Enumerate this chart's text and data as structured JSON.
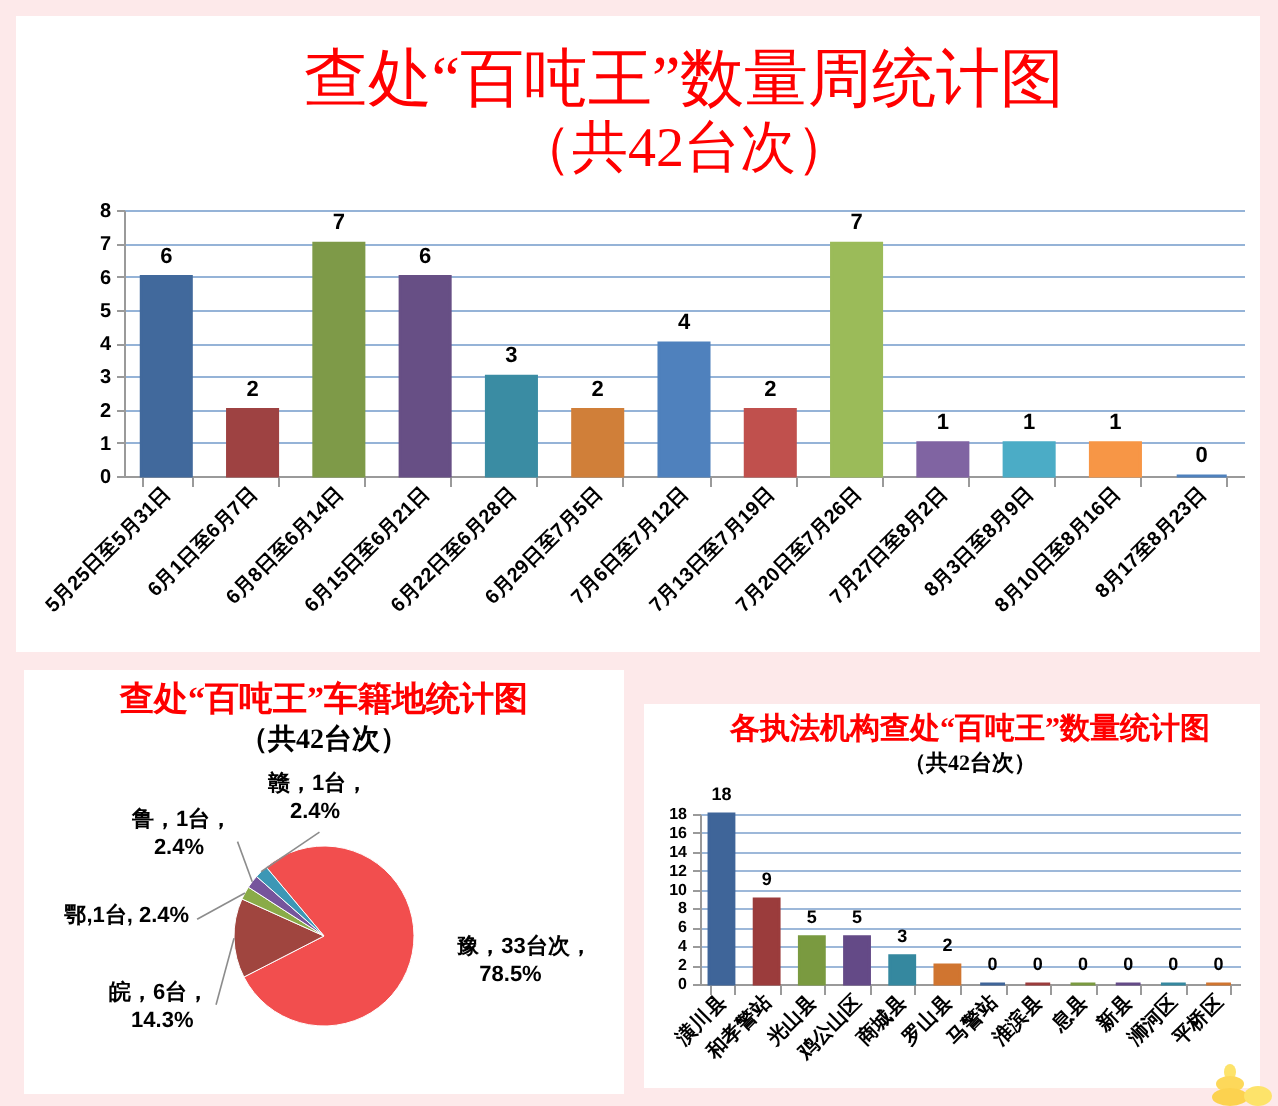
{
  "chart_data": [
    {
      "type": "bar",
      "title": "查处“百吨王”数量周统计图",
      "subtitle": "（共42台次）",
      "categories": [
        "5月25日至5月31日",
        "6月1日至6月7日",
        "6月8日至6月14日",
        "6月15日至6月21日",
        "6月22日至6月28日",
        "6月29日至7月5日",
        "7月6日至7月12日",
        "7月13日至7月19日",
        "7月20日至7月26日",
        "7月27日至8月2日",
        "8月3日至8月9日",
        "8月10日至8月16日",
        "8月17至8月23日"
      ],
      "values": [
        6,
        2,
        7,
        6,
        3,
        2,
        4,
        2,
        7,
        1,
        1,
        1,
        0
      ],
      "colors": [
        "#41699c",
        "#9e4242",
        "#7e9a48",
        "#674f85",
        "#3a8ca3",
        "#d07f39",
        "#4f81bd",
        "#c0504d",
        "#9bbb59",
        "#8064a2",
        "#4bacc6",
        "#f79646",
        "#4f81bd"
      ],
      "ylim": [
        0,
        8
      ],
      "yticks": [
        0,
        1,
        2,
        3,
        4,
        5,
        6,
        7,
        8
      ],
      "grid": "y",
      "data_labels": true
    },
    {
      "type": "pie",
      "title": "查处“百吨王”车籍地统计图",
      "subtitle": "（共42台次）",
      "categories": [
        "豫",
        "皖",
        "鄂",
        "鲁",
        "赣"
      ],
      "values": [
        33,
        6,
        1,
        1,
        1
      ],
      "colors": [
        "#f24e4e",
        "#a0453f",
        "#8aab48",
        "#76559c",
        "#3c97b5"
      ],
      "value_labels": [
        "，33台次，\n78.5%",
        "，6台，\n14.3%",
        ",1台, 2.4%",
        "，1台，\n2.4%",
        "，1台，\n2.4%"
      ]
    },
    {
      "type": "bar",
      "title": "各执法机构查处“百吨王”数量统计图",
      "subtitle": "（共42台次）",
      "categories": [
        "潢川县",
        "和孝警站",
        "光山县",
        "鸡公山区",
        "商城县",
        "罗山县",
        "马警站",
        "淮滨县",
        "息县",
        "新县",
        "浉河区",
        "平桥区"
      ],
      "values": [
        18,
        9,
        5,
        5,
        3,
        2,
        0,
        0,
        0,
        0,
        0,
        0
      ],
      "colors": [
        "#3f6599",
        "#9b3c3c",
        "#7a9a40",
        "#644a87",
        "#35889f",
        "#d07530",
        "#3f6599",
        "#9b3c3c",
        "#7a9a40",
        "#644a87",
        "#35889f",
        "#d07530"
      ],
      "ylim": [
        0,
        18
      ],
      "yticks": [
        0,
        2,
        4,
        6,
        8,
        10,
        12,
        14,
        16,
        18
      ],
      "grid": "y",
      "data_labels": true
    }
  ]
}
